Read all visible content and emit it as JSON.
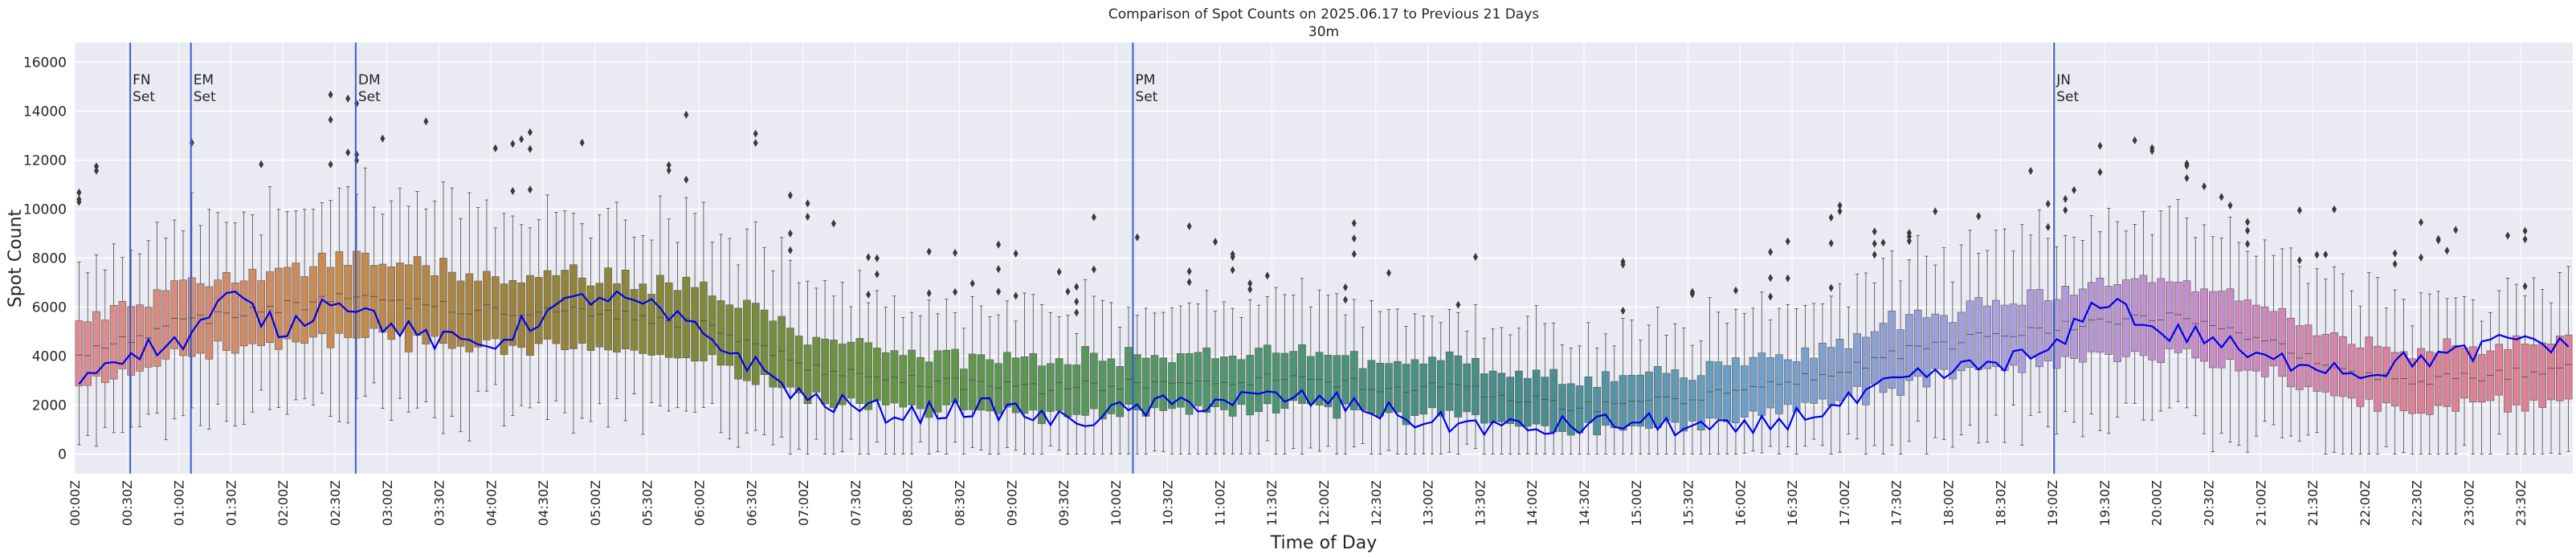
{
  "chart_data": {
    "type": "box",
    "title": "Comparison of Spot Counts on 2025.06.17 to Previous 21 Days",
    "subtitle": "30m",
    "xlabel": "Time of Day",
    "ylabel": "Spot Count",
    "ylim": [
      -800,
      16800
    ],
    "yticks": [
      0,
      2000,
      4000,
      6000,
      8000,
      10000,
      12000,
      14000,
      16000
    ],
    "xlim_hours": [
      0,
      24
    ],
    "bin_minutes": 5,
    "xtick_labels": [
      "00:00Z",
      "00:30Z",
      "01:00Z",
      "01:30Z",
      "02:00Z",
      "02:30Z",
      "03:00Z",
      "03:30Z",
      "04:00Z",
      "04:30Z",
      "05:00Z",
      "05:30Z",
      "06:00Z",
      "06:30Z",
      "07:00Z",
      "07:30Z",
      "08:00Z",
      "08:30Z",
      "09:00Z",
      "09:30Z",
      "10:00Z",
      "10:30Z",
      "11:00Z",
      "11:30Z",
      "12:00Z",
      "12:30Z",
      "13:00Z",
      "13:30Z",
      "14:00Z",
      "14:30Z",
      "15:00Z",
      "15:30Z",
      "16:00Z",
      "16:30Z",
      "17:00Z",
      "17:30Z",
      "18:00Z",
      "18:30Z",
      "19:00Z",
      "19:30Z",
      "20:00Z",
      "20:30Z",
      "21:00Z",
      "21:30Z",
      "22:00Z",
      "22:30Z",
      "23:00Z",
      "23:30Z"
    ],
    "markers": [
      {
        "time": "00:32Z",
        "label1": "FN",
        "label2": "Set"
      },
      {
        "time": "01:07Z",
        "label1": "EM",
        "label2": "Set"
      },
      {
        "time": "02:42Z",
        "label1": "DM",
        "label2": "Set"
      },
      {
        "time": "10:10Z",
        "label1": "PM",
        "label2": "Set"
      },
      {
        "time": "19:01Z",
        "label1": "JN",
        "label2": "Set"
      }
    ],
    "median_profile": {
      "hours": [
        0,
        0.5,
        1,
        1.5,
        2,
        2.5,
        3,
        3.5,
        4,
        4.5,
        5,
        5.5,
        6,
        6.5,
        7,
        7.5,
        8,
        8.5,
        9,
        9.5,
        10,
        10.5,
        11,
        11.5,
        12,
        12.5,
        13,
        13.5,
        14,
        14.5,
        15,
        15.5,
        16,
        16.5,
        17,
        17.5,
        18,
        18.5,
        19,
        19.5,
        20,
        20.5,
        21,
        21.5,
        22,
        22.5,
        23,
        23.5,
        24
      ],
      "values": [
        3900,
        4700,
        5400,
        5700,
        6000,
        6300,
        6300,
        6000,
        5900,
        5900,
        5800,
        5600,
        5300,
        4600,
        3600,
        3200,
        3000,
        2900,
        2700,
        2700,
        2800,
        2900,
        3000,
        3100,
        3000,
        2800,
        2700,
        2600,
        2200,
        1900,
        2000,
        2300,
        2700,
        3000,
        3500,
        4100,
        4500,
        4900,
        5200,
        5400,
        5600,
        5500,
        4600,
        3900,
        3300,
        3000,
        3100,
        3300,
        3800
      ]
    },
    "today_series": {
      "name": "2025.06.17",
      "color": "#0000ee",
      "hours": [
        0,
        0.5,
        1,
        1.5,
        2,
        2.5,
        3,
        3.5,
        4,
        4.5,
        5,
        5.5,
        6,
        6.5,
        7,
        7.5,
        8,
        8.5,
        9,
        9.5,
        10,
        10.5,
        11,
        11.5,
        12,
        12.5,
        13,
        13.5,
        14,
        14.5,
        15,
        15.5,
        16,
        16.5,
        17,
        17.5,
        18,
        18.5,
        19,
        19.5,
        20,
        20.5,
        21,
        21.5,
        22,
        22.5,
        23,
        23.5,
        24
      ],
      "values": [
        3000,
        4200,
        4500,
        6500,
        5000,
        6500,
        5300,
        4600,
        4500,
        5700,
        6500,
        6000,
        5000,
        3700,
        2300,
        1900,
        1600,
        1900,
        1800,
        1300,
        1700,
        2000,
        2200,
        2300,
        2200,
        1800,
        1300,
        1200,
        1000,
        1200,
        1300,
        1100,
        900,
        1500,
        2000,
        2900,
        3300,
        3800,
        4100,
        6500,
        5000,
        4800,
        3800,
        3800,
        3300,
        3900,
        4100,
        4800,
        4200
      ]
    },
    "colormap_note": "box colors cycle pink→orange→olive→green→teal→blue→lavender→pink across the day"
  }
}
